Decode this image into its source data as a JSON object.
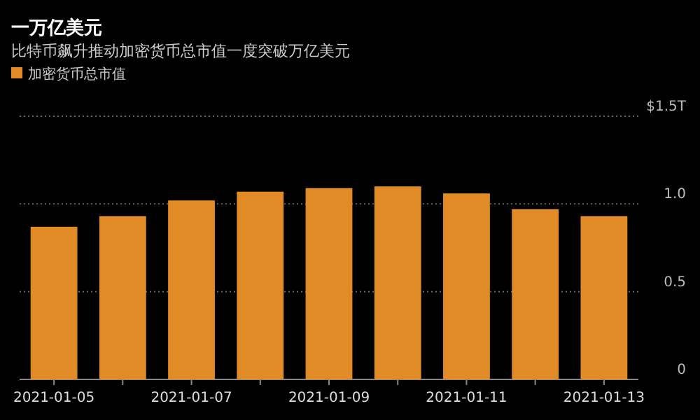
{
  "chart_data": {
    "type": "bar",
    "title": "一万亿美元",
    "subtitle": "比特币飙升推动加密货币总市值一度突破万亿美元",
    "categories": [
      "2021-01-05",
      null,
      "2021-01-07",
      null,
      "2021-01-09",
      null,
      "2021-01-11",
      null,
      "2021-01-13"
    ],
    "series": [
      {
        "name": "加密货币总市值",
        "color": "#e08b25",
        "values": [
          0.87,
          0.93,
          1.02,
          1.07,
          1.09,
          1.1,
          1.06,
          0.97,
          0.93
        ]
      }
    ],
    "ylim": [
      0,
      1.5
    ],
    "yticks": [
      0,
      {
        "value": 0.5,
        "label": "0.5"
      },
      {
        "value": 1.0,
        "label": "1.0"
      },
      {
        "value": 1.5,
        "label": "$1.5T"
      }
    ],
    "grid": "y",
    "legend": "top left"
  }
}
